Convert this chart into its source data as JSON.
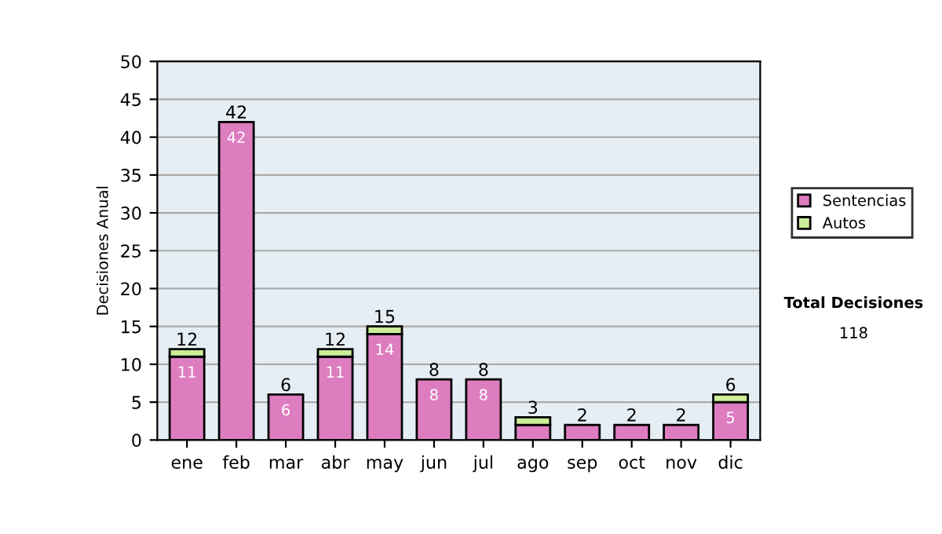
{
  "chart_data": {
    "type": "bar",
    "stacked": true,
    "ylabel": "Decisiones Anual",
    "categories": [
      "ene",
      "feb",
      "mar",
      "abr",
      "may",
      "jun",
      "jul",
      "ago",
      "sep",
      "oct",
      "nov",
      "dic"
    ],
    "series": [
      {
        "name": "Sentencias",
        "color": "#dd7dc0",
        "values": [
          11,
          42,
          6,
          11,
          14,
          8,
          8,
          2,
          2,
          2,
          2,
          5
        ],
        "value_labels": [
          "11",
          "42",
          "6",
          "11",
          "14",
          "8",
          "8",
          null,
          null,
          null,
          null,
          "5"
        ]
      },
      {
        "name": "Autos",
        "color": "#ccee99",
        "values": [
          1,
          0,
          0,
          1,
          1,
          0,
          0,
          1,
          0,
          0,
          0,
          1
        ]
      }
    ],
    "totals": [
      "12",
      "42",
      "6",
      "12",
      "15",
      "8",
      "8",
      "3",
      "2",
      "2",
      "2",
      "6"
    ],
    "ylim": [
      0,
      50
    ],
    "yticks": [
      0,
      5,
      10,
      15,
      20,
      25,
      30,
      35,
      40,
      45,
      50
    ],
    "grid": "y",
    "legend": "right",
    "annotations": [
      "Total Decisiones",
      "118"
    ]
  }
}
